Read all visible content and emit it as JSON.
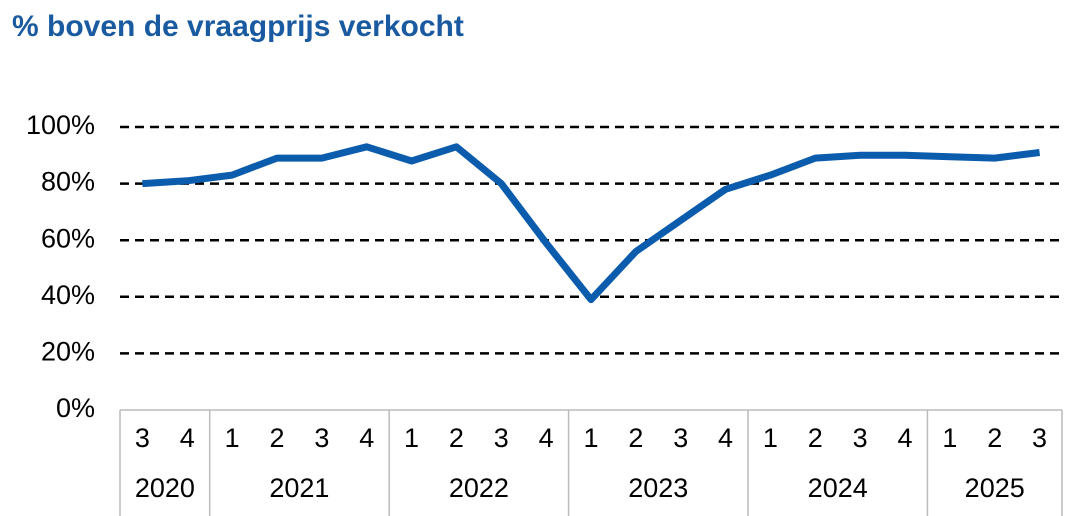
{
  "chart_data": {
    "type": "line",
    "title": "% boven de vraagprijs verkocht",
    "groups": [
      {
        "year": "2020",
        "quarters": [
          "3",
          "4"
        ]
      },
      {
        "year": "2021",
        "quarters": [
          "1",
          "2",
          "3",
          "4"
        ]
      },
      {
        "year": "2022",
        "quarters": [
          "1",
          "2",
          "3",
          "4"
        ]
      },
      {
        "year": "2023",
        "quarters": [
          "1",
          "2",
          "3",
          "4"
        ]
      },
      {
        "year": "2024",
        "quarters": [
          "1",
          "2",
          "3",
          "4"
        ]
      },
      {
        "year": "2025",
        "quarters": [
          "1",
          "2",
          "3"
        ]
      }
    ],
    "values": [
      80,
      81,
      83,
      89,
      89,
      93,
      88,
      93,
      80,
      59,
      39,
      56,
      67,
      78,
      83,
      89,
      90,
      90,
      89.5,
      89,
      91
    ],
    "color": "#0b5cad",
    "ylim": [
      0,
      100
    ],
    "yticks": [
      {
        "value": 0,
        "label": "0%"
      },
      {
        "value": 20,
        "label": "20%"
      },
      {
        "value": 40,
        "label": "40%"
      },
      {
        "value": 60,
        "label": "60%"
      },
      {
        "value": 80,
        "label": "80%"
      },
      {
        "value": 100,
        "label": "100%"
      }
    ],
    "grid": true
  }
}
